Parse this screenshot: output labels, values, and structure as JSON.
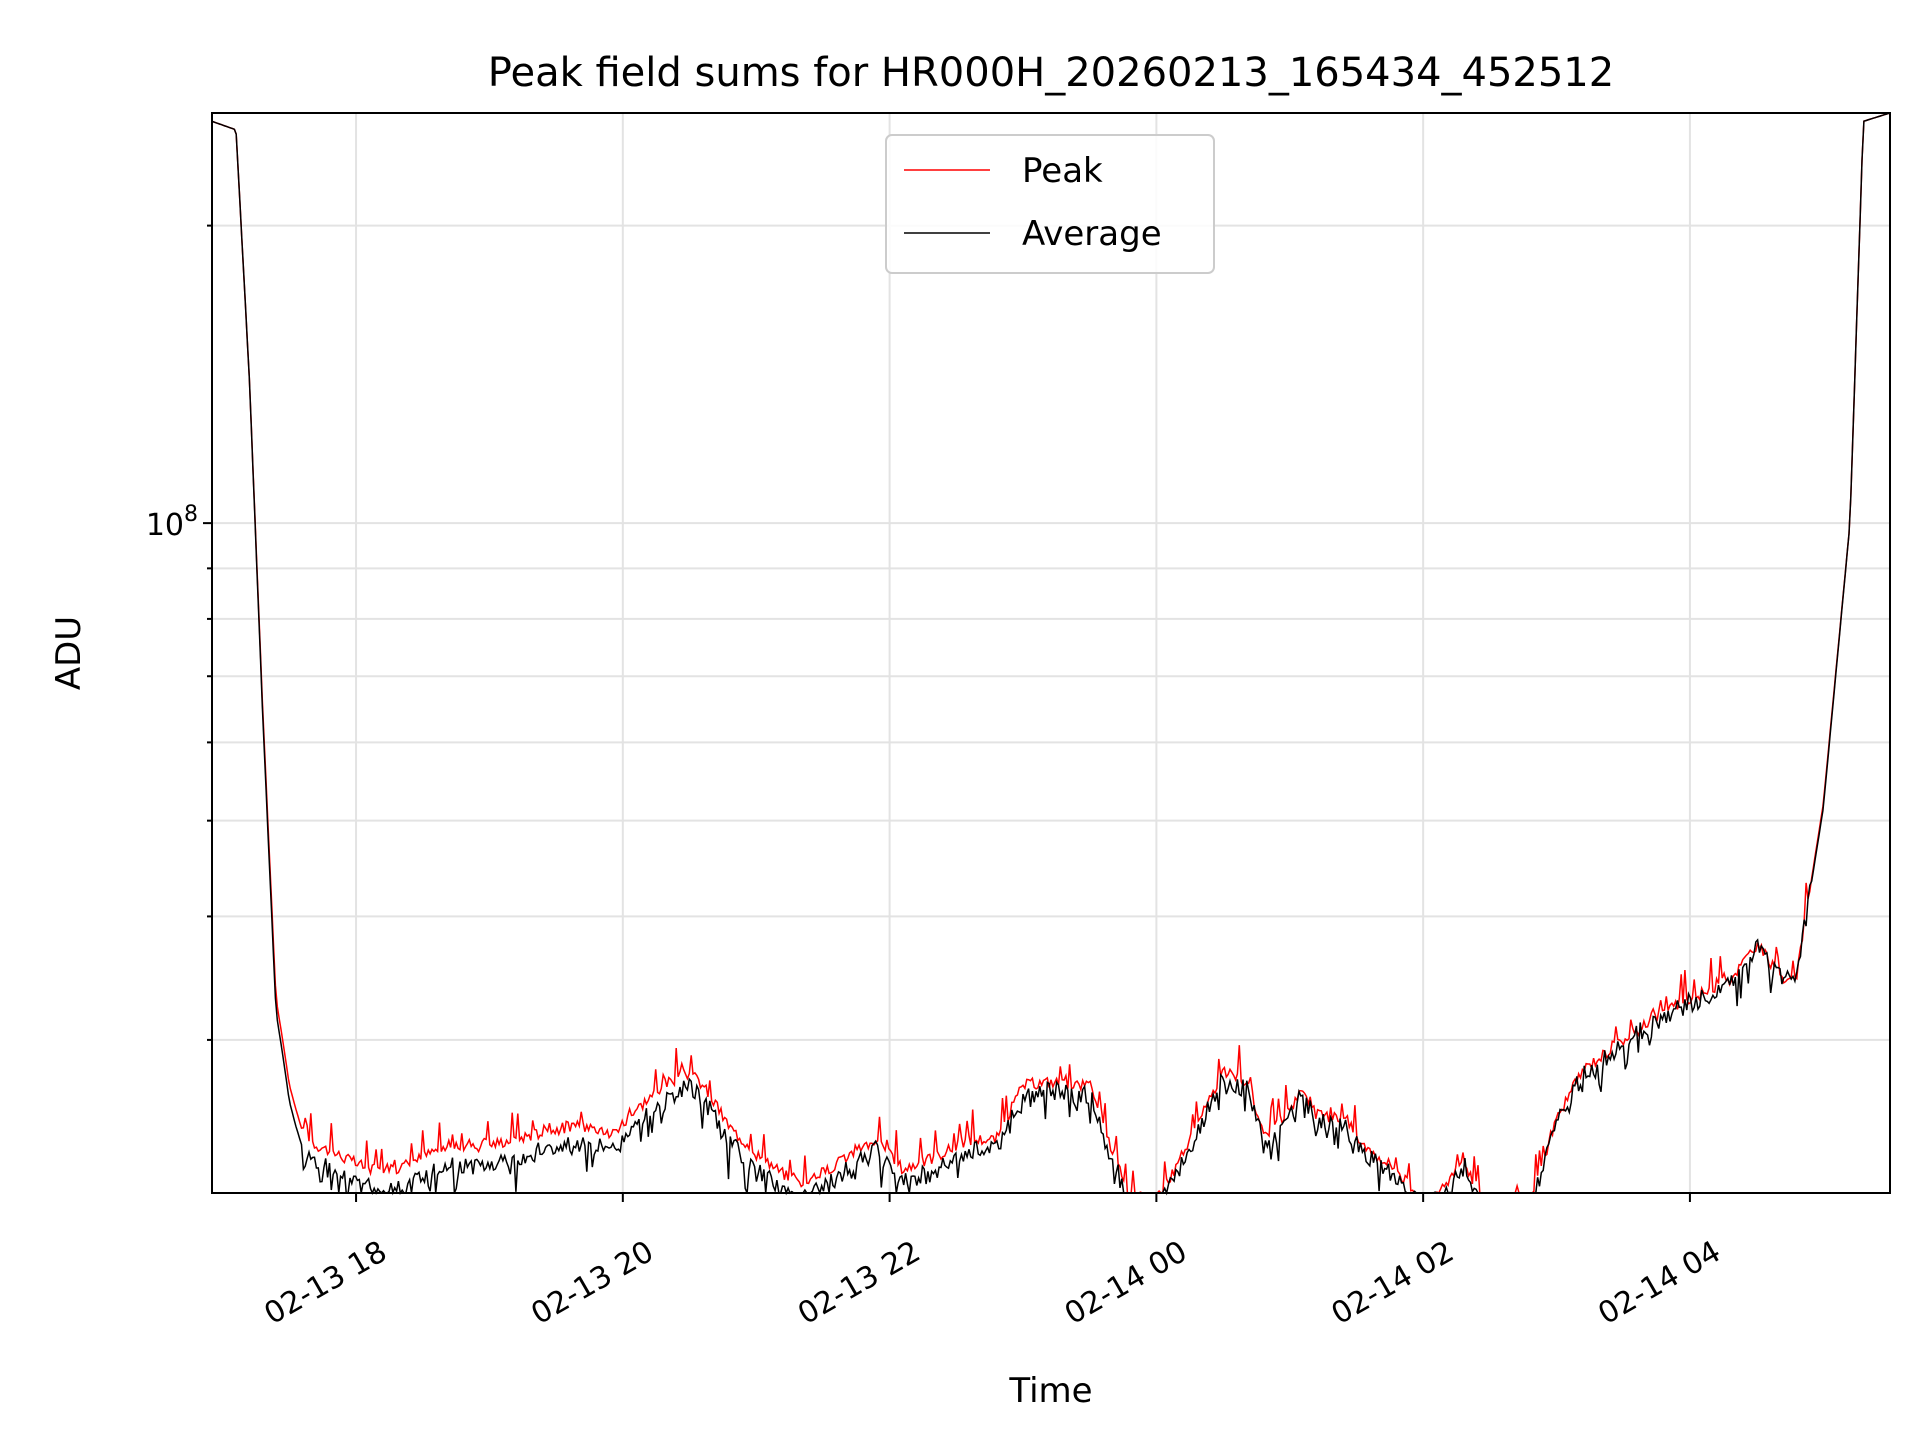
{
  "chart_data": {
    "type": "line",
    "title": "Peak field sums for HR000H_20260213_165434_452512",
    "xlabel": "Time",
    "ylabel": "ADU",
    "yscale": "log",
    "ylim": [
      21000000.0,
      260000000.0
    ],
    "xlim": [
      16.92,
      29.5
    ],
    "grid": true,
    "legend_position": "top-center",
    "y_major_tick": {
      "value": 100000000.0,
      "label": "10",
      "exponent": "8"
    },
    "y_minor_ticks": [
      20000000.0,
      30000000.0,
      40000000.0,
      50000000.0,
      60000000.0,
      70000000.0,
      80000000.0,
      90000000.0,
      200000000.0
    ],
    "x_ticks": [
      {
        "x": 18,
        "label": "02-13 18"
      },
      {
        "x": 20,
        "label": "02-13 20"
      },
      {
        "x": 22,
        "label": "02-13 22"
      },
      {
        "x": 24,
        "label": "02-14 00"
      },
      {
        "x": 26,
        "label": "02-14 02"
      },
      {
        "x": 28,
        "label": "02-14 04"
      }
    ],
    "series": [
      {
        "name": "Peak",
        "color": "#ff0000",
        "x": [
          16.92,
          17.1,
          17.2,
          17.3,
          17.4,
          17.45,
          17.5,
          17.55,
          17.6,
          17.7,
          17.8,
          18.0,
          18.2,
          18.4,
          18.6,
          19.0,
          19.4,
          19.6,
          19.8,
          19.9,
          20.1,
          20.3,
          20.5,
          20.6,
          20.8,
          21.0,
          21.3,
          21.5,
          21.7,
          21.9,
          22.1,
          22.3,
          22.6,
          22.8,
          23.0,
          23.2,
          23.5,
          23.6,
          23.8,
          24.0,
          24.2,
          24.5,
          24.7,
          24.8,
          24.9,
          25.1,
          25.2,
          25.4,
          25.6,
          25.8,
          26.0,
          26.2,
          26.3,
          26.5,
          26.6,
          26.8,
          27.0,
          27.2,
          27.5,
          27.8,
          28.0,
          28.3,
          28.5,
          28.6,
          28.7,
          28.8,
          29.0,
          29.2,
          29.3,
          29.5
        ],
        "values": [
          255000000.0,
          250000000.0,
          140000000.0,
          65000000.0,
          33000000.0,
          30000000.0,
          27000000.0,
          25500000.0,
          24200000.0,
          23500000.0,
          23200000.0,
          22500000.0,
          22000000.0,
          22500000.0,
          23200000.0,
          23500000.0,
          24200000.0,
          24500000.0,
          24500000.0,
          24000000.0,
          25500000.0,
          27000000.0,
          27800000.0,
          27000000.0,
          24500000.0,
          23000000.0,
          21500000.0,
          22000000.0,
          23000000.0,
          23800000.0,
          22200000.0,
          22700000.0,
          23800000.0,
          23800000.0,
          27000000.0,
          27200000.0,
          27000000.0,
          24500000.0,
          21000000.0,
          20500000.0,
          23000000.0,
          27800000.0,
          27000000.0,
          24000000.0,
          24500000.0,
          26800000.0,
          25200000.0,
          25000000.0,
          23200000.0,
          22200000.0,
          20500000.0,
          21500000.0,
          22800000.0,
          19800000.0,
          19500000.0,
          20500000.0,
          25000000.0,
          28000000.0,
          30000000.0,
          32000000.0,
          33000000.0,
          34500000.0,
          37500000.0,
          36000000.0,
          34500000.0,
          35000000.0,
          52000000.0,
          100000000.0,
          255000000.0,
          260000000.0
        ]
      },
      {
        "name": "Average",
        "color": "#000000",
        "x": [
          16.92,
          17.1,
          17.2,
          17.3,
          17.4,
          17.45,
          17.5,
          17.55,
          17.6,
          17.7,
          17.8,
          18.0,
          18.2,
          18.4,
          18.6,
          19.0,
          19.4,
          19.6,
          19.8,
          19.9,
          20.1,
          20.3,
          20.5,
          20.6,
          20.8,
          21.0,
          21.3,
          21.5,
          21.7,
          21.9,
          22.1,
          22.3,
          22.6,
          22.8,
          23.0,
          23.2,
          23.5,
          23.6,
          23.8,
          24.0,
          24.2,
          24.5,
          24.7,
          24.8,
          24.9,
          25.1,
          25.2,
          25.4,
          25.6,
          25.8,
          26.0,
          26.2,
          26.3,
          26.5,
          26.6,
          26.8,
          27.0,
          27.2,
          27.5,
          27.8,
          28.0,
          28.3,
          28.5,
          28.6,
          28.7,
          28.8,
          29.0,
          29.2,
          29.3,
          29.5
        ],
        "values": [
          255000000.0,
          250000000.0,
          140000000.0,
          64000000.0,
          32000000.0,
          29000000.0,
          26000000.0,
          24500000.0,
          23300000.0,
          22500000.0,
          22200000.0,
          21500000.0,
          21000000.0,
          21500000.0,
          22200000.0,
          22500000.0,
          23200000.0,
          23500000.0,
          23500000.0,
          23000000.0,
          24500000.0,
          26200000.0,
          27000000.0,
          26200000.0,
          23600000.0,
          22200000.0,
          20700000.0,
          21200000.0,
          22200000.0,
          23200000.0,
          21500000.0,
          22000000.0,
          23200000.0,
          23300000.0,
          26400000.0,
          26600000.0,
          26400000.0,
          24000000.0,
          20500000.0,
          20000000.0,
          22500000.0,
          27400000.0,
          26600000.0,
          23600000.0,
          24100000.0,
          26400000.0,
          24800000.0,
          24600000.0,
          22800000.0,
          21800000.0,
          20100000.0,
          21200000.0,
          22500000.0,
          19500000.0,
          19200000.0,
          20200000.0,
          24700000.0,
          27700000.0,
          29700000.0,
          31700000.0,
          32700000.0,
          34200000.0,
          37200000.0,
          35700000.0,
          34300000.0,
          34800000.0,
          51500000.0,
          100000000.0,
          255000000.0,
          260000000.0
        ]
      }
    ]
  }
}
